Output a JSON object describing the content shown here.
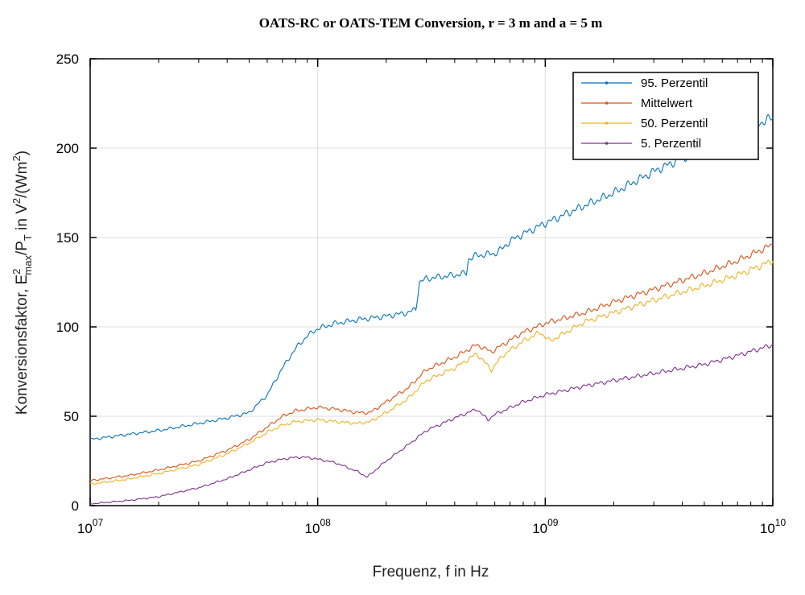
{
  "chart_data": {
    "type": "line",
    "title": "OATS-RC or OATS-TEM Conversion, r = 3 m and a = 5 m",
    "xlabel": "Frequenz, f in Hz",
    "ylabel": {
      "prefix": "Konversionsfaktor, E",
      "sup1": "2",
      "sub1": "max",
      "mid": "/P",
      "sub2": "T",
      "mid2": " in V",
      "sup2": "2",
      "mid3": "/(Wm",
      "sup3": "2",
      "suffix": ")"
    },
    "x_scale": "log",
    "xlim": [
      10000000,
      10000000000
    ],
    "ylim": [
      0,
      250
    ],
    "x_ticks": [
      {
        "value": 10000000,
        "base": "10",
        "exp": "07"
      },
      {
        "value": 100000000,
        "base": "10",
        "exp": "08"
      },
      {
        "value": 1000000000,
        "base": "10",
        "exp": "09"
      },
      {
        "value": 10000000000,
        "base": "10",
        "exp": "10"
      }
    ],
    "y_ticks": [
      {
        "value": 0,
        "label": "0"
      },
      {
        "value": 50,
        "label": "50"
      },
      {
        "value": 100,
        "label": "100"
      },
      {
        "value": 150,
        "label": "150"
      },
      {
        "value": 200,
        "label": "200"
      },
      {
        "value": 250,
        "label": "250"
      }
    ],
    "grid": true,
    "legend_position": "top-right",
    "series": [
      {
        "name": "95. Perzentil",
        "color": "#0072BD",
        "x": [
          10000000,
          15000000,
          20000000,
          30000000,
          40000000,
          50000000,
          60000000,
          70000000,
          80000000,
          90000000,
          100000000,
          120000000,
          150000000,
          200000000,
          250000000,
          270000000,
          280000000,
          300000000,
          400000000,
          450000000,
          460000000,
          500000000,
          600000000,
          650000000,
          700000000,
          800000000,
          1000000000,
          1500000000,
          2000000000,
          3000000000,
          5000000000,
          7000000000,
          10000000000
        ],
        "y": [
          37,
          40,
          42,
          46,
          49,
          52,
          62,
          77,
          88,
          95,
          99,
          102,
          104,
          106,
          108,
          110,
          125,
          127,
          129,
          130,
          138,
          140,
          141,
          144,
          148,
          152,
          158,
          168,
          175,
          187,
          200,
          209,
          217
        ]
      },
      {
        "name": "Mittelwert",
        "color": "#D95319",
        "x": [
          10000000,
          15000000,
          20000000,
          30000000,
          40000000,
          50000000,
          60000000,
          70000000,
          80000000,
          100000000,
          120000000,
          150000000,
          170000000,
          200000000,
          250000000,
          300000000,
          400000000,
          500000000,
          580000000,
          650000000,
          800000000,
          1000000000,
          1500000000,
          2000000000,
          3000000000,
          5000000000,
          7000000000,
          10000000000
        ],
        "y": [
          14,
          17,
          20,
          25,
          31,
          37,
          44,
          50,
          53,
          55,
          54,
          52,
          52,
          58,
          66,
          76,
          83,
          90,
          86,
          90,
          97,
          102,
          108,
          114,
          121,
          130,
          137,
          146
        ]
      },
      {
        "name": "50. Perzentil",
        "color": "#EDB120",
        "x": [
          10000000,
          15000000,
          20000000,
          30000000,
          40000000,
          50000000,
          60000000,
          70000000,
          80000000,
          100000000,
          120000000,
          150000000,
          170000000,
          200000000,
          250000000,
          300000000,
          400000000,
          500000000,
          580000000,
          650000000,
          800000000,
          950000000,
          1050000000,
          1500000000,
          2000000000,
          3000000000,
          5000000000,
          7000000000,
          10000000000
        ],
        "y": [
          12,
          15,
          18,
          23,
          29,
          35,
          41,
          45,
          47,
          48,
          47,
          46,
          47,
          52,
          60,
          70,
          77,
          85,
          76,
          84,
          92,
          97,
          92,
          103,
          108,
          115,
          123,
          129,
          137
        ]
      },
      {
        "name": "5. Perzentil",
        "color": "#7E2F8E",
        "x": [
          10000000,
          15000000,
          20000000,
          30000000,
          40000000,
          50000000,
          60000000,
          70000000,
          80000000,
          90000000,
          100000000,
          120000000,
          150000000,
          165000000,
          200000000,
          250000000,
          300000000,
          400000000,
          500000000,
          560000000,
          600000000,
          800000000,
          1000000000,
          1500000000,
          2000000000,
          3000000000,
          5000000000,
          7000000000,
          10000000000
        ],
        "y": [
          1,
          3,
          5,
          10,
          15,
          20,
          24,
          26,
          27,
          27,
          26,
          24,
          19,
          16,
          25,
          34,
          42,
          49,
          54,
          48,
          51,
          58,
          62,
          67,
          70,
          74,
          79,
          84,
          90
        ]
      }
    ]
  }
}
